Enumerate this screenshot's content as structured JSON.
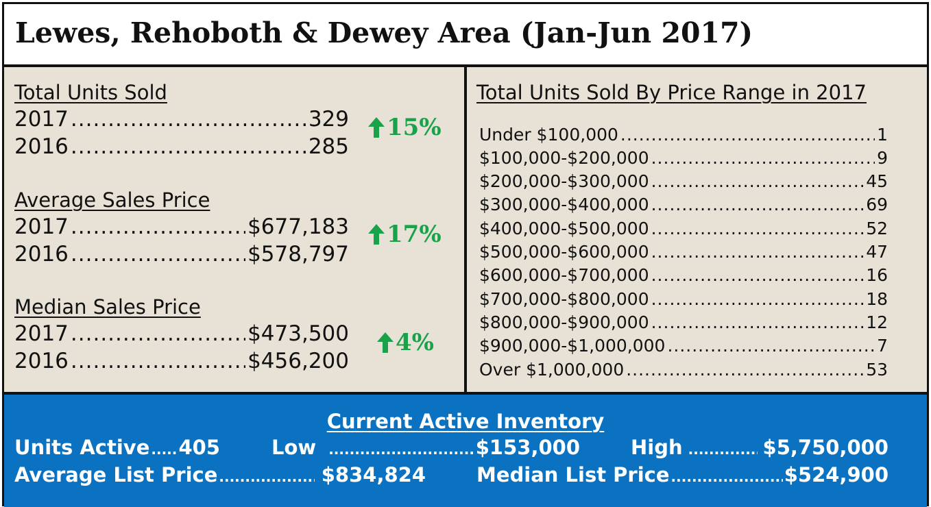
{
  "header": {
    "title": "Lewes, Rehoboth & Dewey Area (Jan-Jun 2017)"
  },
  "left": {
    "sections": [
      {
        "heading": "Total Units Sold",
        "rows": [
          {
            "label": "2017",
            "value": "329"
          },
          {
            "label": "2016",
            "value": "285"
          }
        ],
        "change": "15%"
      },
      {
        "heading": "Average Sales Price",
        "rows": [
          {
            "label": "2017",
            "value": "$677,183"
          },
          {
            "label": "2016",
            "value": "$578,797"
          }
        ],
        "change": "17%"
      },
      {
        "heading": "Median Sales Price",
        "rows": [
          {
            "label": "2017",
            "value": "$473,500"
          },
          {
            "label": "2016",
            "value": "$456,200"
          }
        ],
        "change": "4%"
      }
    ]
  },
  "right": {
    "heading": "Total Units Sold By Price Range in 2017",
    "rows": [
      {
        "label": "Under $100,000",
        "value": "1"
      },
      {
        "label": "$100,000-$200,000",
        "value": "9"
      },
      {
        "label": "$200,000-$300,000",
        "value": "45"
      },
      {
        "label": "$300,000-$400,000",
        "value": "69"
      },
      {
        "label": "$400,000-$500,000",
        "value": "52"
      },
      {
        "label": "$500,000-$600,000",
        "value": "47"
      },
      {
        "label": "$600,000-$700,000",
        "value": "16"
      },
      {
        "label": "$700,000-$800,000",
        "value": "18"
      },
      {
        "label": "$800,000-$900,000",
        "value": "12"
      },
      {
        "label": "$900,000-$1,000,000",
        "value": "7"
      },
      {
        "label": "Over $1,000,000",
        "value": "53"
      }
    ]
  },
  "inventory": {
    "heading": "Current Active Inventory",
    "units_active_label": "Units Active",
    "units_active_value": "405",
    "low_label": "Low",
    "low_value": "$153,000",
    "high_label": "High",
    "high_value": "$5,750,000",
    "avg_list_label": "Average List Price",
    "avg_list_value": "$834,824",
    "median_list_label": "Median List Price",
    "median_list_value": "$524,900"
  },
  "colors": {
    "accent_green": "#1aa24a",
    "inventory_blue": "#0b72c2",
    "panel_beige": "#e8e2d6"
  },
  "icons": {
    "change_indicator": "arrow-up-icon"
  }
}
